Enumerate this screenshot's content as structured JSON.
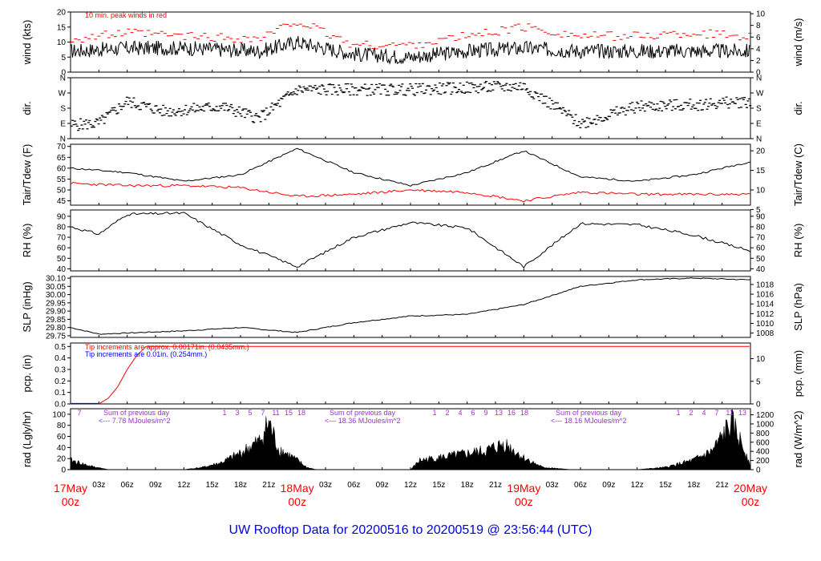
{
  "title": "UW Rooftop Data for 20200516  to  20200519 @ 23:56:44  (UTC)",
  "colors": {
    "black": "#000000",
    "red": "#ff0000",
    "blue": "#0000ff",
    "purple": "#9933cc",
    "title": "#0000dd"
  },
  "x_axis": {
    "hour_ticks": [
      "03z",
      "06z",
      "09z",
      "12z",
      "15z",
      "18z",
      "21z",
      "03z",
      "06z",
      "09z",
      "12z",
      "15z",
      "18z",
      "21z",
      "03z",
      "06z",
      "09z",
      "12z",
      "15z",
      "18z",
      "21z"
    ],
    "date_labels": [
      {
        "date": "17May",
        "hour": "00z"
      },
      {
        "date": "18May",
        "hour": "00z"
      },
      {
        "date": "19May",
        "hour": "00z"
      },
      {
        "date": "20May",
        "hour": "00z"
      }
    ]
  },
  "panels": {
    "wind": {
      "left_label": "wind (kts)",
      "right_label": "wind (m/s)",
      "left_ticks": [
        "0",
        "5",
        "10",
        "15",
        "20"
      ],
      "right_ticks": [
        "0",
        "2",
        "4",
        "6",
        "8",
        "10"
      ],
      "note": "10 min. peak winds in red"
    },
    "dir": {
      "left_label": "dir.",
      "right_label": "dir.",
      "ticks": [
        "N",
        "E",
        "S",
        "W",
        "N"
      ]
    },
    "temp": {
      "left_label": "Tair/Tdew (F)",
      "right_label": "Tair/Tdew (C)",
      "left_ticks": [
        "45",
        "50",
        "55",
        "60",
        "65",
        "70"
      ],
      "right_ticks": [
        "5",
        "10",
        "15",
        "20"
      ]
    },
    "rh": {
      "left_label": "RH (%)",
      "right_label": "RH (%)",
      "ticks": [
        "40",
        "50",
        "60",
        "70",
        "80",
        "90"
      ]
    },
    "slp": {
      "left_label": "SLP (inHg)",
      "right_label": "SLP (hPa)",
      "left_ticks": [
        "29.75",
        "29.80",
        "29.85",
        "29.90",
        "29.95",
        "30.00",
        "30.05",
        "30.10"
      ],
      "right_ticks": [
        "1008",
        "1010",
        "1012",
        "1014",
        "1016",
        "1018"
      ]
    },
    "pcp": {
      "left_label": "pcp. (in)",
      "right_label": "pcp. (mm)",
      "left_ticks": [
        "0.0",
        "0.1",
        "0.2",
        "0.3",
        "0.4",
        "0.5"
      ],
      "right_ticks": [
        "0",
        "5",
        "10"
      ],
      "note_red": "Tip increments are approx. 0.00171in. (0.0435mm.)",
      "note_blue": "Tip increments are 0.01in. (0.254mm.)"
    },
    "rad": {
      "left_label": "rad (Lgly/hr)",
      "right_label": "rad (W/m^2)",
      "left_ticks": [
        "0",
        "20",
        "40",
        "60",
        "80",
        "100"
      ],
      "right_ticks": [
        "0",
        "200",
        "400",
        "600",
        "800",
        "1000",
        "1200"
      ],
      "day_hour_labels": [
        [
          "7"
        ],
        [
          "1",
          "3",
          "5",
          "7",
          "11",
          "15",
          "18"
        ],
        [
          "1",
          "2",
          "4",
          "6",
          "9",
          "13",
          "16",
          "18"
        ],
        [
          "1",
          "2",
          "4",
          "7",
          "11",
          "13"
        ]
      ],
      "sum_labels": [
        {
          "line1": "Sum of previous day",
          "line2": "<--- 7.78 MJoules/m^2"
        },
        {
          "line1": "Sum of previous day",
          "line2": "<--- 18.36 MJoules/m^2"
        },
        {
          "line1": "Sum of previous day",
          "line2": "<--- 18.16 MJoules/m^2"
        }
      ]
    }
  },
  "chart_data": [
    {
      "type": "line",
      "title": "",
      "xlabel": "",
      "ylabel": "wind (kts)",
      "x_hours": [
        0,
        6,
        12,
        20,
        24,
        30,
        36,
        42,
        48,
        54,
        60,
        66,
        72
      ],
      "series": [
        {
          "values": [
            7,
            8,
            8,
            7,
            10,
            6,
            5,
            7,
            8,
            7,
            7,
            7,
            7
          ]
        },
        {
          "name": "10 min. peak winds in red",
          "values": [
            11,
            13,
            12,
            11,
            17,
            9,
            9,
            12,
            15,
            12,
            12,
            13,
            12
          ]
        }
      ],
      "ylim": [
        0,
        20
      ]
    },
    {
      "type": "scatter",
      "xlabel": "",
      "ylabel": "dir.",
      "x_hours": [
        0,
        3,
        6,
        10,
        16,
        20,
        24,
        36,
        48,
        54,
        60,
        66,
        72
      ],
      "series": [
        {
          "values": [
            80,
            90,
            220,
            160,
            190,
            120,
            290,
            290,
            310,
            90,
            190,
            200,
            220
          ]
        }
      ],
      "ylim": [
        0,
        360
      ]
    },
    {
      "type": "line",
      "xlabel": "",
      "ylabel": "Tair/Tdew (F)",
      "x_hours": [
        0,
        6,
        12,
        18,
        24,
        30,
        36,
        42,
        48,
        54,
        60,
        66,
        72
      ],
      "series": [
        {
          "values": [
            60,
            58,
            54,
            57,
            69,
            58,
            52,
            58,
            68,
            56,
            54,
            57,
            63
          ]
        },
        {
          "values": [
            53,
            52,
            52,
            51,
            47,
            48,
            50,
            49,
            45,
            49,
            48,
            48,
            48
          ]
        }
      ],
      "ylim": [
        43,
        70
      ]
    },
    {
      "type": "line",
      "xlabel": "",
      "ylabel": "RH (%)",
      "x_hours": [
        0,
        3,
        6,
        12,
        18,
        24,
        30,
        36,
        42,
        48,
        54,
        60,
        66,
        72
      ],
      "series": [
        {
          "values": [
            80,
            73,
            92,
            93,
            63,
            42,
            70,
            84,
            79,
            42,
            83,
            82,
            72,
            57
          ]
        }
      ],
      "ylim": [
        38,
        95
      ]
    },
    {
      "type": "line",
      "xlabel": "",
      "ylabel": "SLP (inHg)",
      "x_hours": [
        0,
        3,
        12,
        18,
        24,
        30,
        36,
        42,
        48,
        54,
        60,
        66,
        72
      ],
      "series": [
        {
          "values": [
            29.8,
            29.76,
            29.78,
            29.8,
            29.77,
            29.83,
            29.87,
            29.88,
            29.94,
            30.05,
            30.09,
            30.1,
            30.09
          ]
        }
      ],
      "ylim": [
        29.74,
        30.11
      ]
    },
    {
      "type": "line",
      "xlabel": "",
      "ylabel": "pcp. (in)",
      "x_hours": [
        0,
        3,
        4,
        5,
        6,
        7,
        8,
        72
      ],
      "series": [
        {
          "values": [
            0,
            0,
            0.05,
            0.15,
            0.3,
            0.42,
            0.5,
            0.5
          ]
        }
      ],
      "ylim": [
        0,
        0.53
      ]
    },
    {
      "type": "area",
      "xlabel": "",
      "ylabel": "rad (Lgly/hr)",
      "x_hours": [
        0,
        2,
        4,
        12,
        14,
        16,
        18,
        20,
        21,
        22,
        24,
        25,
        26,
        36,
        37,
        40,
        44,
        46,
        48,
        50,
        53,
        60,
        63,
        66,
        68,
        70,
        72
      ],
      "series": [
        {
          "values": [
            20,
            8,
            0,
            0,
            5,
            15,
            35,
            60,
            100,
            45,
            20,
            5,
            0,
            0,
            20,
            28,
            40,
            55,
            25,
            5,
            0,
            0,
            5,
            20,
            40,
            100,
            15
          ]
        }
      ],
      "ylim": [
        0,
        110
      ]
    }
  ]
}
